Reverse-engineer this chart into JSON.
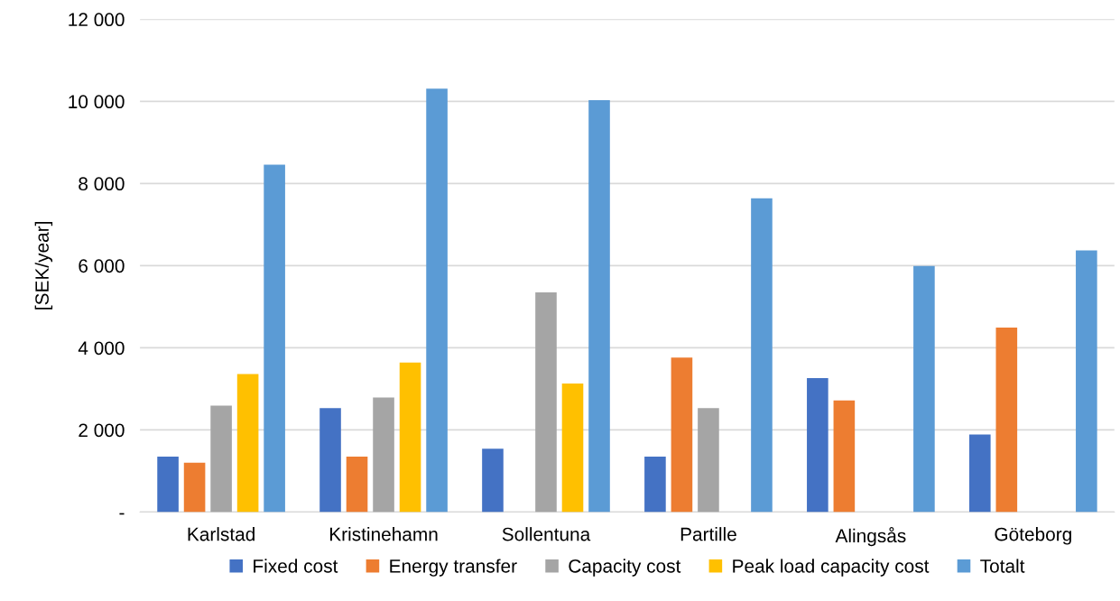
{
  "chart_data": {
    "type": "bar",
    "ylabel": "[SEK/year]",
    "categories": [
      "Karlstad",
      "Kristinehamn",
      "Sollentuna",
      "Partille",
      "Alingsås",
      "Göteborg"
    ],
    "series": [
      {
        "name": "Fixed cost",
        "color": "#4472c4",
        "values": [
          1350,
          2530,
          1540,
          1350,
          3260,
          1890
        ]
      },
      {
        "name": "Energy transfer",
        "color": "#ed7d31",
        "values": [
          1200,
          1350,
          null,
          3760,
          2720,
          4490
        ]
      },
      {
        "name": "Capacity cost",
        "color": "#a5a5a5",
        "values": [
          2590,
          2790,
          5350,
          2530,
          null,
          null
        ]
      },
      {
        "name": "Peak load capacity cost",
        "color": "#ffc000",
        "values": [
          3360,
          3640,
          3130,
          null,
          null,
          null
        ]
      },
      {
        "name": "Totalt",
        "color": "#5b9bd5",
        "values": [
          8460,
          10310,
          10030,
          7640,
          5990,
          6370
        ]
      }
    ],
    "ylim": [
      0,
      12000
    ],
    "yticks": [
      {
        "value": 0,
        "label": "-"
      },
      {
        "value": 2000,
        "label": "2 000"
      },
      {
        "value": 4000,
        "label": "4 000"
      },
      {
        "value": 6000,
        "label": "6 000"
      },
      {
        "value": 8000,
        "label": "8 000"
      },
      {
        "value": 10000,
        "label": "10 000"
      },
      {
        "value": 12000,
        "label": "12 000"
      }
    ],
    "grid": "y",
    "legend": "bottom"
  }
}
